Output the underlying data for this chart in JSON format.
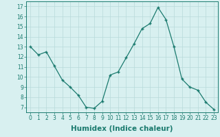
{
  "x": [
    0,
    1,
    2,
    3,
    4,
    5,
    6,
    7,
    8,
    9,
    10,
    11,
    12,
    13,
    14,
    15,
    16,
    17,
    18,
    19,
    20,
    21,
    22,
    23
  ],
  "y": [
    13.0,
    12.2,
    12.5,
    11.1,
    9.7,
    9.0,
    8.2,
    7.0,
    6.9,
    7.6,
    10.2,
    10.5,
    11.9,
    13.3,
    14.8,
    15.3,
    16.9,
    15.7,
    13.0,
    9.8,
    9.0,
    8.7,
    7.5,
    6.8
  ],
  "line_color": "#1a7a6e",
  "marker": "+",
  "bg_color": "#d8f0f0",
  "grid_color": "#b8dada",
  "xlabel": "Humidex (Indice chaleur)",
  "xlim": [
    -0.5,
    23.5
  ],
  "ylim": [
    6.5,
    17.5
  ],
  "yticks": [
    7,
    8,
    9,
    10,
    11,
    12,
    13,
    14,
    15,
    16,
    17
  ],
  "xticks": [
    0,
    1,
    2,
    3,
    4,
    5,
    6,
    7,
    8,
    9,
    10,
    11,
    12,
    13,
    14,
    15,
    16,
    17,
    18,
    19,
    20,
    21,
    22,
    23
  ],
  "tick_fontsize": 5.5,
  "xlabel_fontsize": 7.5
}
